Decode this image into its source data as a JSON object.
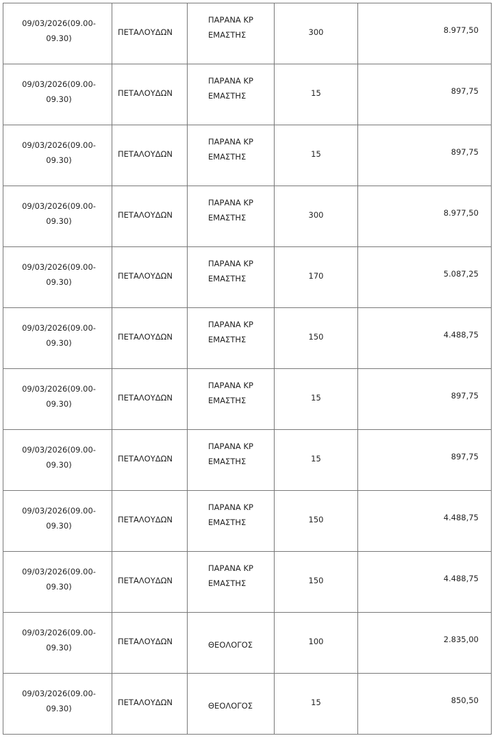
{
  "rows": [
    {
      "date": "09/03/2026(09.00-09.30)",
      "street": "ΠΕΤΑΛΟΥΔΩΝ",
      "area": "ΠΑΡΑΝΑ ΚΡΕΜΑΣΤΗΣ",
      "qty": "300",
      "amount": "8.977,50"
    },
    {
      "date": "09/03/2026(09.00-09.30)",
      "street": "ΠΕΤΑΛΟΥΔΩΝ",
      "area": "ΠΑΡΑΝΑ ΚΡΕΜΑΣΤΗΣ",
      "qty": "15",
      "amount": "897,75"
    },
    {
      "date": "09/03/2026(09.00-09.30)",
      "street": "ΠΕΤΑΛΟΥΔΩΝ",
      "area": "ΠΑΡΑΝΑ ΚΡΕΜΑΣΤΗΣ",
      "qty": "15",
      "amount": "897,75"
    },
    {
      "date": "09/03/2026(09.00-09.30)",
      "street": "ΠΕΤΑΛΟΥΔΩΝ",
      "area": "ΠΑΡΑΝΑ ΚΡΕΜΑΣΤΗΣ",
      "qty": "300",
      "amount": "8.977,50"
    },
    {
      "date": "09/03/2026(09.00-09.30)",
      "street": "ΠΕΤΑΛΟΥΔΩΝ",
      "area": "ΠΑΡΑΝΑ ΚΡΕΜΑΣΤΗΣ",
      "qty": "170",
      "amount": "5.087,25"
    },
    {
      "date": "09/03/2026(09.00-09.30)",
      "street": "ΠΕΤΑΛΟΥΔΩΝ",
      "area": "ΠΑΡΑΝΑ ΚΡΕΜΑΣΤΗΣ",
      "qty": "150",
      "amount": "4.488,75"
    },
    {
      "date": "09/03/2026(09.00-09.30)",
      "street": "ΠΕΤΑΛΟΥΔΩΝ",
      "area": "ΠΑΡΑΝΑ ΚΡΕΜΑΣΤΗΣ",
      "qty": "15",
      "amount": "897,75"
    },
    {
      "date": "09/03/2026(09.00-09.30)",
      "street": "ΠΕΤΑΛΟΥΔΩΝ",
      "area": "ΠΑΡΑΝΑ ΚΡΕΜΑΣΤΗΣ",
      "qty": "15",
      "amount": "897,75"
    },
    {
      "date": "09/03/2026(09.00-09.30)",
      "street": "ΠΕΤΑΛΟΥΔΩΝ",
      "area": "ΠΑΡΑΝΑ ΚΡΕΜΑΣΤΗΣ",
      "qty": "150",
      "amount": "4.488,75"
    },
    {
      "date": "09/03/2026(09.00-09.30)",
      "street": "ΠΕΤΑΛΟΥΔΩΝ",
      "area": "ΠΑΡΑΝΑ ΚΡΕΜΑΣΤΗΣ",
      "qty": "150",
      "amount": "4.488,75"
    },
    {
      "date": "09/03/2026(09.00-09.30)",
      "street": "ΠΕΤΑΛΟΥΔΩΝ",
      "area": "ΘΕΟΛΟΓΟΣ",
      "qty": "100",
      "amount": "2.835,00"
    },
    {
      "date": "09/03/2026(09.00-09.30)",
      "street": "ΠΕΤΑΛΟΥΔΩΝ",
      "area": "ΘΕΟΛΟΓΟΣ",
      "qty": "15",
      "amount": "850,50"
    }
  ]
}
